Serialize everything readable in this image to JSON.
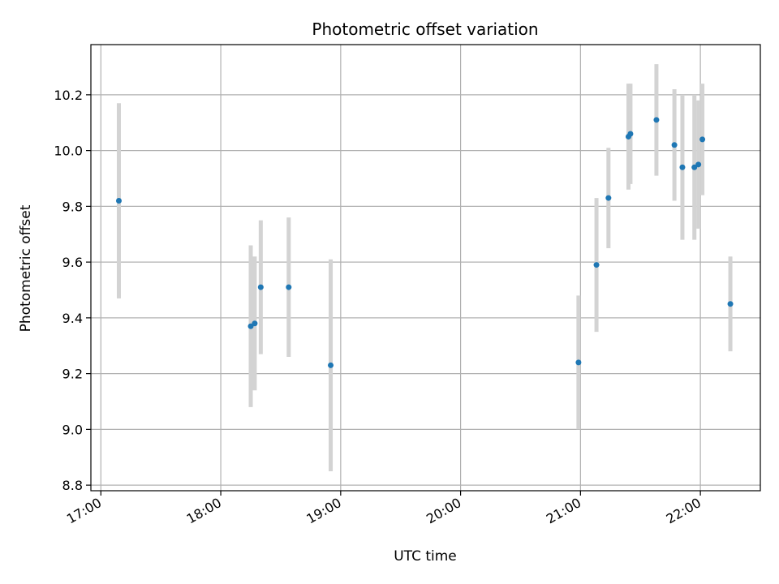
{
  "chart_data": {
    "type": "scatter",
    "title": "Photometric offset variation",
    "xlabel": "UTC time",
    "ylabel": "Photometric offset",
    "x_axis": "time",
    "xlim": [
      "16:55",
      "22:30"
    ],
    "ylim": [
      8.78,
      10.38
    ],
    "x_ticks": [
      "17:00",
      "18:00",
      "19:00",
      "20:00",
      "21:00",
      "22:00"
    ],
    "y_ticks": [
      8.8,
      9.0,
      9.2,
      9.4,
      9.6,
      9.8,
      10.0,
      10.2
    ],
    "grid": true,
    "colors": {
      "point": "#1f77b4",
      "errorbar": "#d3d3d3",
      "grid": "#b0b0b0"
    },
    "points": [
      {
        "x": "17:09",
        "y": 9.82,
        "err": 0.35
      },
      {
        "x": "18:15",
        "y": 9.37,
        "err": 0.29
      },
      {
        "x": "18:17",
        "y": 9.38,
        "err": 0.24
      },
      {
        "x": "18:20",
        "y": 9.51,
        "err": 0.24
      },
      {
        "x": "18:34",
        "y": 9.51,
        "err": 0.25
      },
      {
        "x": "18:55",
        "y": 9.23,
        "err": 0.38
      },
      {
        "x": "20:59",
        "y": 9.24,
        "err": 0.24
      },
      {
        "x": "21:08",
        "y": 9.59,
        "err": 0.24
      },
      {
        "x": "21:14",
        "y": 9.83,
        "err": 0.18
      },
      {
        "x": "21:24",
        "y": 10.05,
        "err": 0.19
      },
      {
        "x": "21:25",
        "y": 10.06,
        "err": 0.18
      },
      {
        "x": "21:38",
        "y": 10.11,
        "err": 0.2
      },
      {
        "x": "21:47",
        "y": 10.02,
        "err": 0.2
      },
      {
        "x": "21:51",
        "y": 9.94,
        "err": 0.26
      },
      {
        "x": "21:57",
        "y": 9.94,
        "err": 0.26
      },
      {
        "x": "21:59",
        "y": 9.95,
        "err": 0.23
      },
      {
        "x": "22:01",
        "y": 10.04,
        "err": 0.2
      },
      {
        "x": "22:15",
        "y": 9.45,
        "err": 0.17
      }
    ]
  }
}
